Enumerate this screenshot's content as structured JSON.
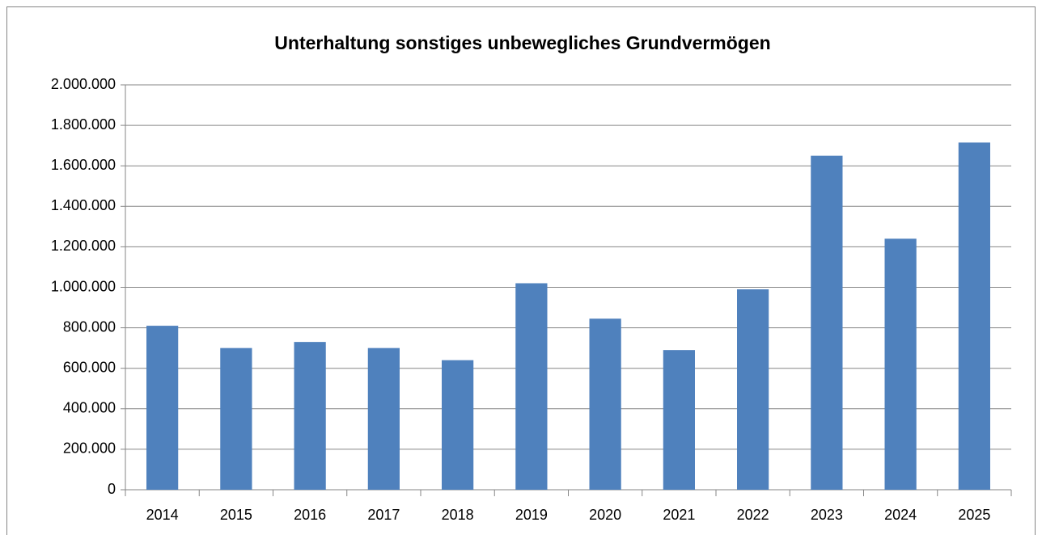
{
  "chart_data": {
    "type": "bar",
    "title": "Unterhaltung sonstiges unbewegliches Grundvermögen",
    "categories": [
      "2014",
      "2015",
      "2016",
      "2017",
      "2018",
      "2019",
      "2020",
      "2021",
      "2022",
      "2023",
      "2024",
      "2025"
    ],
    "values": [
      810000,
      700000,
      730000,
      700000,
      640000,
      1020000,
      845000,
      690000,
      990000,
      1650000,
      1240000,
      1715000
    ],
    "color": "#4f81bd",
    "ylim": [
      0,
      2000000
    ],
    "yticks": [
      0,
      {
        "value": 200000,
        "label": "200.000"
      },
      {
        "value": 400000,
        "label": "400.000"
      },
      {
        "value": 600000,
        "label": "600.000"
      },
      {
        "value": 800000,
        "label": "800.000"
      },
      {
        "value": 1000000,
        "label": "1.000.000"
      },
      {
        "value": 1200000,
        "label": "1.200.000"
      },
      {
        "value": 1400000,
        "label": "1.400.000"
      },
      {
        "value": 1600000,
        "label": "1.600.000"
      },
      {
        "value": 1800000,
        "label": "1.800.000"
      },
      {
        "value": 2000000,
        "label": "2.000.000"
      }
    ],
    "grid": true
  }
}
